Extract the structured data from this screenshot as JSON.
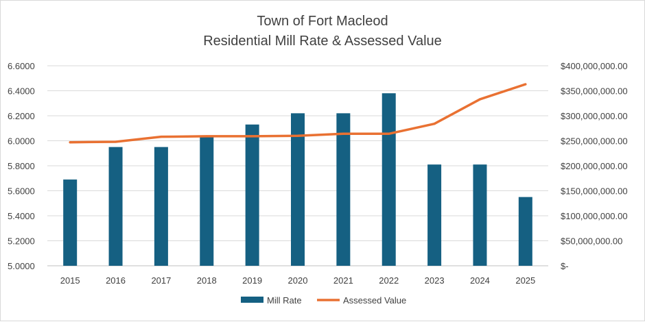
{
  "chart_data": {
    "type": "bar-line-combo",
    "title": "Town of Fort Macleod",
    "subtitle": "Residential Mill Rate & Assessed Value",
    "categories": [
      "2015",
      "2016",
      "2017",
      "2018",
      "2019",
      "2020",
      "2021",
      "2022",
      "2023",
      "2024",
      "2025"
    ],
    "series": [
      {
        "name": "Mill Rate",
        "type": "bar",
        "axis": "left",
        "color": "#156082",
        "values": [
          5.69,
          5.95,
          5.95,
          6.04,
          6.13,
          6.22,
          6.22,
          6.38,
          5.81,
          5.81,
          5.55
        ]
      },
      {
        "name": "Assessed Value",
        "type": "line",
        "axis": "right",
        "color": "#E97132",
        "values": [
          247000000,
          248000000,
          258000000,
          259000000,
          259000000,
          260000000,
          264000000,
          264000000,
          284000000,
          333000000,
          363000000
        ]
      }
    ],
    "left_axis": {
      "ylim": [
        5.0,
        6.6
      ],
      "ticks": [
        "5.0000",
        "5.2000",
        "5.4000",
        "5.6000",
        "5.8000",
        "6.0000",
        "6.2000",
        "6.4000",
        "6.6000"
      ]
    },
    "right_axis": {
      "ylim": [
        0,
        400000000
      ],
      "ticks": [
        "$-",
        "$50,000,000.00",
        "$100,000,000.00",
        "$150,000,000.00",
        "$200,000,000.00",
        "$250,000,000.00",
        "$300,000,000.00",
        "$350,000,000.00",
        "$400,000,000.00"
      ]
    },
    "grid": "horizontal",
    "legend_position": "bottom"
  }
}
